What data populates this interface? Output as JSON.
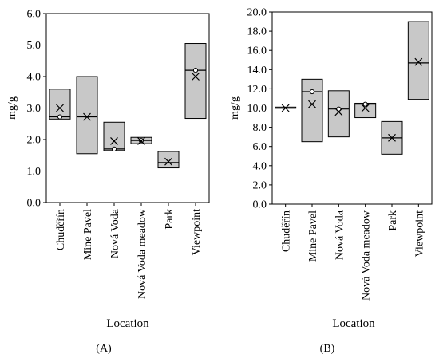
{
  "chart_data": [
    {
      "panel_label": "(A)",
      "type": "box",
      "ylabel": "mg/g",
      "xlabel": "Location",
      "ylim": [
        0,
        6
      ],
      "ytick_step": 1,
      "ytick_decimals": 1,
      "grid": false,
      "categories": [
        "Chuděřín",
        "Mine Pavel",
        "Nová Voda",
        "Nová Voda meadow",
        "Park",
        "Viewpoint"
      ],
      "boxes": [
        {
          "q1": 2.65,
          "median": 2.72,
          "q3": 3.6,
          "mean": 3.0,
          "circle": 2.72
        },
        {
          "q1": 1.55,
          "median": 2.72,
          "q3": 4.0,
          "mean": 2.72
        },
        {
          "q1": 1.65,
          "median": 1.7,
          "q3": 2.55,
          "mean": 1.95,
          "circle": 1.7
        },
        {
          "q1": 1.87,
          "median": 1.97,
          "q3": 2.07,
          "mean": 1.95,
          "circle": 1.97
        },
        {
          "q1": 1.1,
          "median": 1.27,
          "q3": 1.62,
          "mean": 1.3
        },
        {
          "q1": 2.67,
          "median": 4.2,
          "q3": 5.05,
          "mean": 4.0,
          "circle": 4.2
        }
      ]
    },
    {
      "panel_label": "(B)",
      "type": "box",
      "ylabel": "mg/g",
      "xlabel": "Location",
      "ylim": [
        0,
        20
      ],
      "ytick_step": 2,
      "ytick_decimals": 1,
      "grid": false,
      "categories": [
        "Chuděřín",
        "Mine Pavel",
        "Nová Voda",
        "Nová Voda meadow",
        "Park",
        "Viewpoint"
      ],
      "boxes": [
        {
          "q1": 10.0,
          "median": 10.0,
          "q3": 10.1,
          "mean": 10.0
        },
        {
          "q1": 6.5,
          "median": 11.7,
          "q3": 13.0,
          "mean": 10.4,
          "circle": 11.7
        },
        {
          "q1": 7.0,
          "median": 9.9,
          "q3": 11.8,
          "mean": 9.6,
          "circle": 9.9
        },
        {
          "q1": 9.0,
          "median": 10.4,
          "q3": 10.5,
          "mean": 10.0,
          "circle": 10.4
        },
        {
          "q1": 5.2,
          "median": 6.9,
          "q3": 8.6,
          "mean": 6.9
        },
        {
          "q1": 10.9,
          "median": 14.7,
          "q3": 19.0,
          "mean": 14.8
        }
      ]
    }
  ],
  "colors": {
    "box_fill": "#c8c8c8",
    "box_stroke": "#000000",
    "axis": "#000000",
    "background": "#ffffff"
  }
}
